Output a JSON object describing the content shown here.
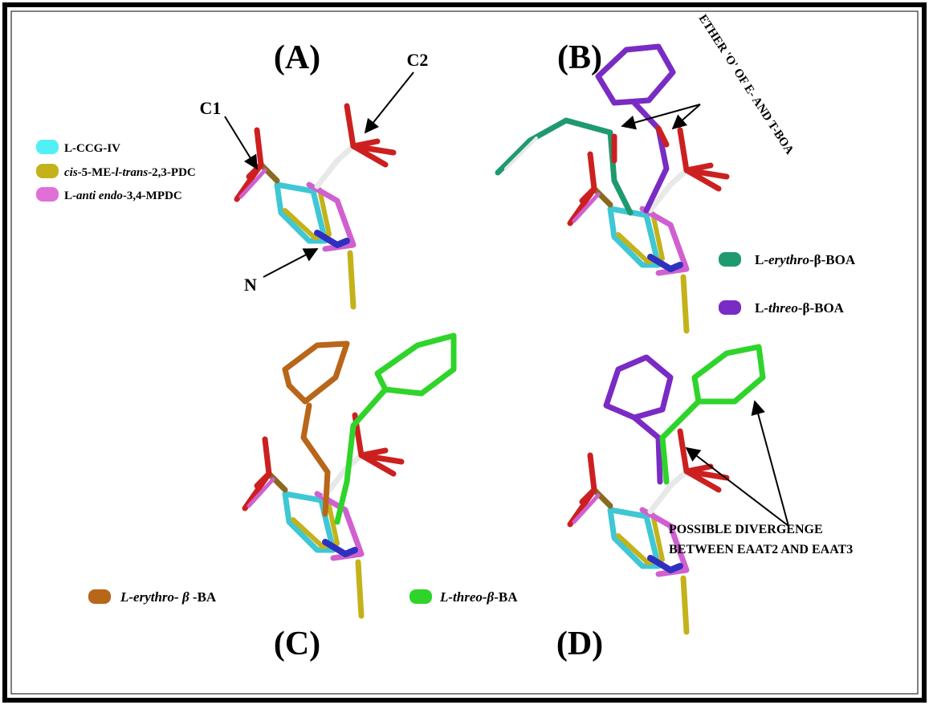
{
  "panels": [
    {
      "label": "(A)",
      "legend": [
        {
          "color": "#52f0f4",
          "parts": [
            {
              "text": "L-CCG-IV",
              "italic": false
            }
          ]
        },
        {
          "color": "#c4b21a",
          "parts": [
            {
              "text": "cis",
              "italic": true
            },
            {
              "text": "-5-ME-",
              "italic": false
            },
            {
              "text": "l-trans",
              "italic": true
            },
            {
              "text": "-2,3-PDC",
              "italic": false
            }
          ]
        },
        {
          "color": "#e070d8",
          "parts": [
            {
              "text": "L-",
              "italic": false
            },
            {
              "text": "anti endo",
              "italic": true
            },
            {
              "text": "-3,4-MPDC",
              "italic": false
            }
          ]
        }
      ]
    },
    {
      "label": "(B)",
      "legend": [
        {
          "color": "#1f9a6e",
          "parts": [
            {
              "text": "L-",
              "italic": false
            },
            {
              "text": "erythro",
              "italic": true
            },
            {
              "text": "-β-BOA",
              "italic": false
            }
          ]
        },
        {
          "color": "#7a2bc4",
          "parts": [
            {
              "text": "L-",
              "italic": false
            },
            {
              "text": "threo",
              "italic": true
            },
            {
              "text": "-β-BOA",
              "italic": false
            }
          ]
        }
      ]
    },
    {
      "label": "(C)",
      "legend": [
        {
          "color": "#b8661a",
          "parts": [
            {
              "text": "L-erythro- β",
              "italic": true
            },
            {
              "text": " -BA",
              "italic": false
            }
          ]
        },
        {
          "color": "#2fd42a",
          "parts": [
            {
              "text": "L-threo-β",
              "italic": true
            },
            {
              "text": "-BA",
              "italic": false
            }
          ]
        }
      ]
    },
    {
      "label": "(D)"
    }
  ],
  "atom_labels": {
    "c1": "C1",
    "c2": "C2",
    "n": "N"
  },
  "annotations": {
    "ether": "ETHER 'O' OF E- AND T-BOA",
    "divergence": [
      "POSSIBLE DIVERGENGE",
      "BETWEEN EAAT2 AND EAAT3"
    ]
  }
}
